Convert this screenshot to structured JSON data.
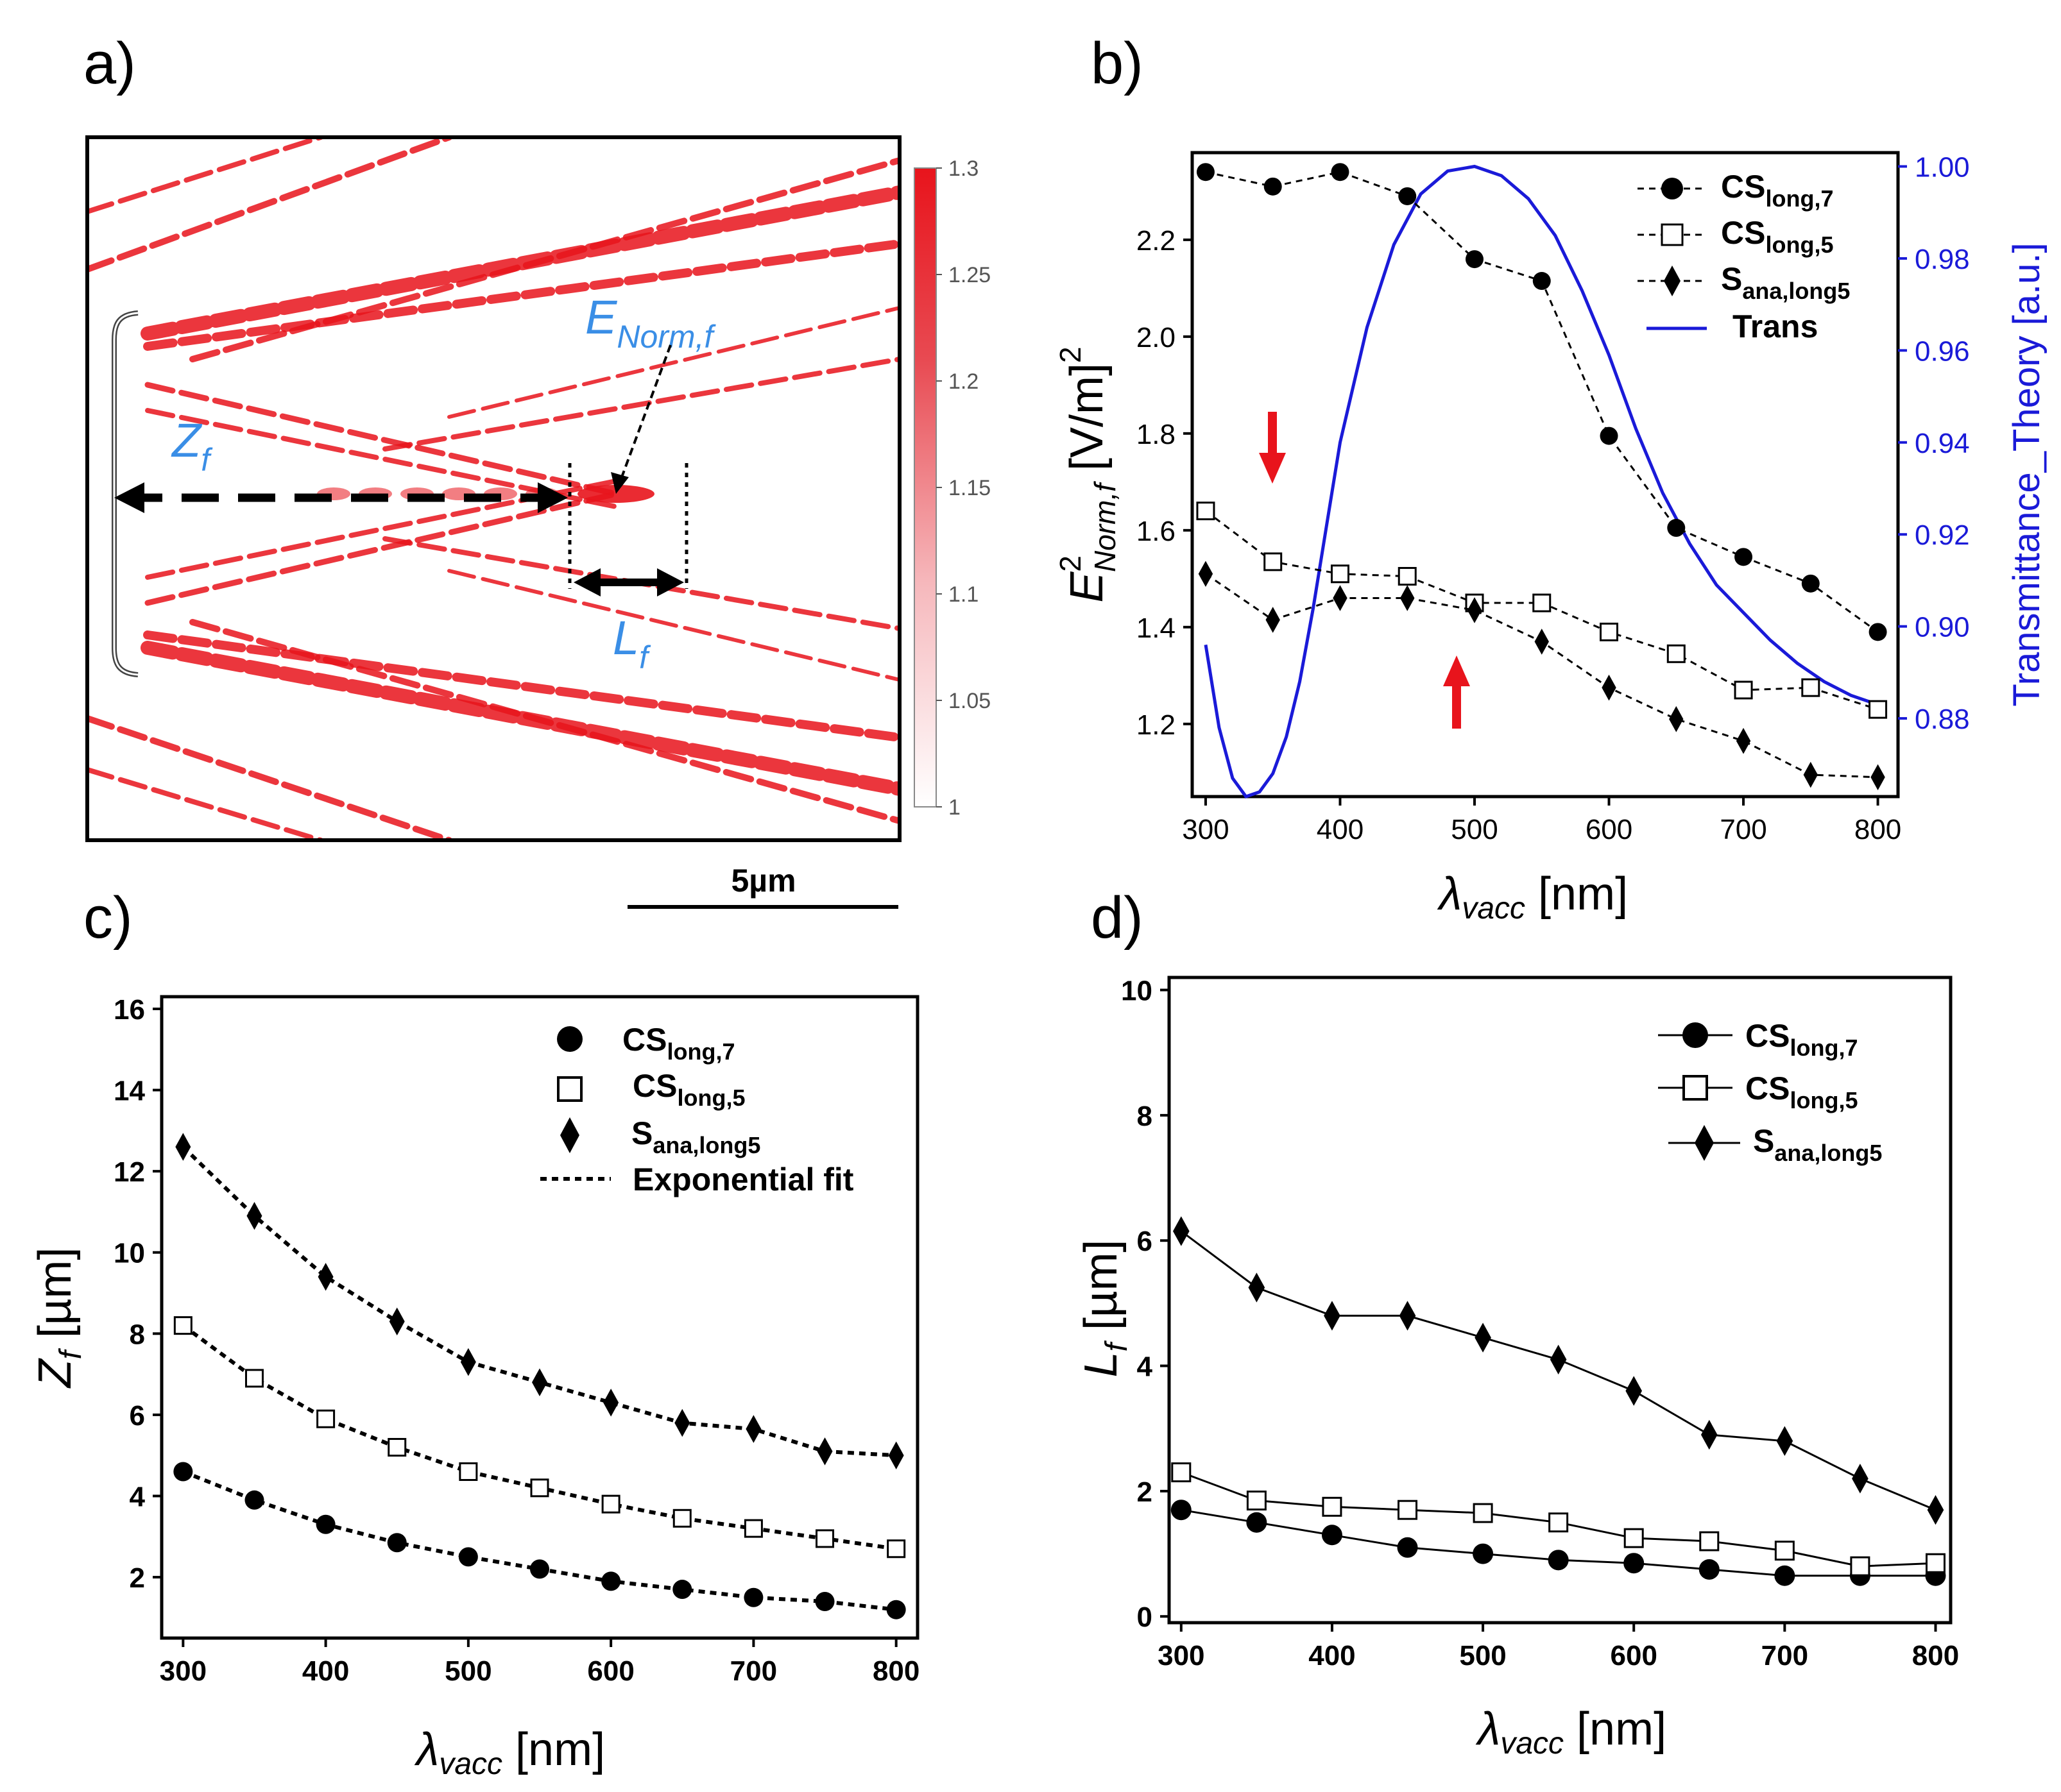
{
  "panel_labels": {
    "a": "a)",
    "b": "b)",
    "c": "c)",
    "d": "d)"
  },
  "panel_a": {
    "colorbar_ticks": [
      "1.3",
      "1.25",
      "1.2",
      "1.15",
      "1.1",
      "1.05",
      "1"
    ],
    "annotations": {
      "enorm": "E",
      "enorm_sub": "Norm,f",
      "zf": "Z",
      "zf_sub": "f",
      "lf": "L",
      "lf_sub": "f"
    },
    "scalebar_label": "5µm"
  },
  "chart_data": [
    {
      "id": "b",
      "type": "line",
      "x": [
        300,
        350,
        400,
        450,
        500,
        550,
        600,
        650,
        700,
        750,
        800
      ],
      "series": [
        {
          "name": "CS_long,7",
          "legend": "CS",
          "legend_sub": "long,7",
          "marker": "filled-circle",
          "values": [
            2.34,
            2.31,
            2.34,
            2.29,
            2.16,
            2.115,
            1.795,
            1.605,
            1.545,
            1.49,
            1.39
          ]
        },
        {
          "name": "CS_long,5",
          "legend": "CS",
          "legend_sub": "long,5",
          "marker": "open-square",
          "values": [
            1.64,
            1.535,
            1.51,
            1.505,
            1.45,
            1.45,
            1.39,
            1.345,
            1.27,
            1.275,
            1.23
          ]
        },
        {
          "name": "S_ana,long5",
          "legend": "S",
          "legend_sub": "ana,long5",
          "marker": "filled-diamond",
          "values": [
            1.51,
            1.415,
            1.46,
            1.46,
            1.435,
            1.37,
            1.275,
            1.21,
            1.165,
            1.095,
            1.09
          ]
        }
      ],
      "trans": {
        "name": "Trans",
        "x": [
          300,
          310,
          320,
          330,
          340,
          350,
          360,
          370,
          380,
          390,
          400,
          420,
          440,
          460,
          480,
          500,
          520,
          540,
          560,
          580,
          600,
          620,
          640,
          660,
          680,
          700,
          720,
          740,
          760,
          780,
          800
        ],
        "values": [
          0.896,
          0.878,
          0.867,
          0.863,
          0.864,
          0.868,
          0.876,
          0.888,
          0.904,
          0.922,
          0.94,
          0.965,
          0.983,
          0.994,
          0.999,
          1.0,
          0.998,
          0.993,
          0.985,
          0.973,
          0.959,
          0.943,
          0.929,
          0.918,
          0.909,
          0.903,
          0.897,
          0.892,
          0.888,
          0.885,
          0.883
        ]
      },
      "xlabel": "λ",
      "xlabel_sub": "vacc",
      "xlabel_unit": " [nm]",
      "ylabel_main": "E",
      "ylabel_sup": "2",
      "ylabel_sub": "Norm,f",
      "ylabel_unit": " [V/m]",
      "ylabel_unit_sup": "2",
      "y2label": "Transmittance_Theory [a.u.]",
      "xlim": [
        290,
        815
      ],
      "ylim": [
        1.05,
        2.38
      ],
      "y2lim": [
        0.863,
        1.003
      ],
      "xticks": [
        "300",
        "400",
        "500",
        "600",
        "700",
        "800"
      ],
      "yticks": [
        "1.2",
        "1.4",
        "1.6",
        "1.8",
        "2.0",
        "2.2"
      ],
      "y2ticks": [
        "0.88",
        "0.90",
        "0.92",
        "0.94",
        "0.96",
        "0.98",
        "1.00"
      ],
      "trans_color": "#1a1ad8",
      "arrow_color": "#e8141c"
    },
    {
      "id": "c",
      "type": "scatter",
      "x": [
        300,
        350,
        400,
        450,
        500,
        550,
        600,
        650,
        700,
        750,
        800
      ],
      "series": [
        {
          "name": "CS_long,7",
          "legend": "CS",
          "legend_sub": "long,7",
          "marker": "filled-circle",
          "values": [
            4.6,
            3.9,
            3.3,
            2.85,
            2.5,
            2.2,
            1.9,
            1.7,
            1.5,
            1.4,
            1.2
          ]
        },
        {
          "name": "CS_long,5",
          "legend": "CS",
          "legend_sub": "long,5",
          "marker": "open-square",
          "values": [
            8.2,
            6.9,
            5.9,
            5.2,
            4.6,
            4.2,
            3.8,
            3.45,
            3.2,
            2.95,
            2.7
          ]
        },
        {
          "name": "S_ana,long5",
          "legend": "S",
          "legend_sub": "ana,long5",
          "marker": "filled-diamond",
          "values": [
            12.6,
            10.9,
            9.4,
            8.3,
            7.3,
            6.8,
            6.3,
            5.8,
            5.65,
            5.1,
            5.0
          ]
        }
      ],
      "fit_legend": "Exponential fit",
      "xlabel": "λ",
      "xlabel_sub": "vacc",
      "xlabel_unit": " [nm]",
      "ylabel_main": "Z",
      "ylabel_sub": "f",
      "ylabel_unit": " [µm]",
      "xlim": [
        285,
        815
      ],
      "ylim": [
        0.5,
        16.3
      ],
      "xticks": [
        "300",
        "400",
        "500",
        "600",
        "700",
        "800"
      ],
      "yticks": [
        "2",
        "4",
        "6",
        "8",
        "10",
        "12",
        "14",
        "16"
      ]
    },
    {
      "id": "d",
      "type": "line",
      "x": [
        300,
        350,
        400,
        450,
        500,
        550,
        600,
        650,
        700,
        750,
        800
      ],
      "series": [
        {
          "name": "CS_long,7",
          "legend": "CS",
          "legend_sub": "long,7",
          "marker": "filled-circle",
          "values": [
            1.7,
            1.5,
            1.3,
            1.1,
            1.0,
            0.9,
            0.85,
            0.75,
            0.65,
            0.65,
            0.65
          ]
        },
        {
          "name": "CS_long,5",
          "legend": "CS",
          "legend_sub": "long,5",
          "marker": "open-square",
          "values": [
            2.3,
            1.85,
            1.75,
            1.7,
            1.65,
            1.5,
            1.25,
            1.2,
            1.05,
            0.8,
            0.85
          ]
        },
        {
          "name": "S_ana,long5",
          "legend": "S",
          "legend_sub": "ana,long5",
          "marker": "filled-diamond",
          "values": [
            6.15,
            5.25,
            4.8,
            4.8,
            4.45,
            4.1,
            3.6,
            2.9,
            2.8,
            2.2,
            1.7
          ]
        }
      ],
      "xlabel": "λ",
      "xlabel_sub": "vacc",
      "xlabel_unit": " [nm]",
      "ylabel_main": "L",
      "ylabel_sub": "f",
      "ylabel_unit": " [µm]",
      "xlim": [
        292,
        810
      ],
      "ylim": [
        -0.1,
        10.2
      ],
      "xticks": [
        "300",
        "400",
        "500",
        "600",
        "700",
        "800"
      ],
      "yticks": [
        "0",
        "2",
        "4",
        "6",
        "8",
        "10"
      ]
    }
  ]
}
